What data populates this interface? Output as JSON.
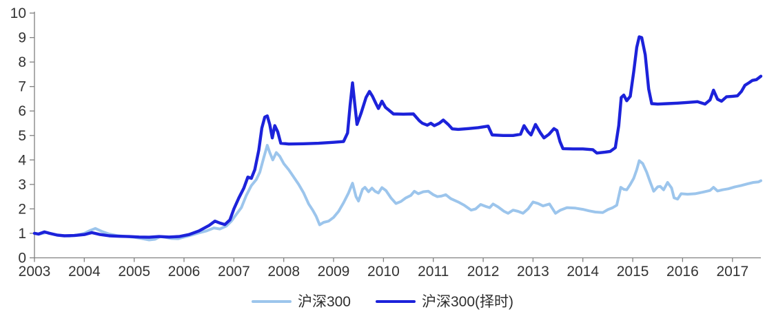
{
  "chart_data": {
    "type": "line",
    "xlim": [
      2003,
      2017.57
    ],
    "ylim": [
      0,
      10
    ],
    "x_ticks": [
      2003,
      2004,
      2005,
      2006,
      2007,
      2008,
      2009,
      2010,
      2011,
      2012,
      2013,
      2014,
      2015,
      2016,
      2017
    ],
    "y_ticks": [
      0,
      1,
      2,
      3,
      4,
      5,
      6,
      7,
      8,
      9,
      10
    ],
    "grid": false,
    "legend_position": "bottom",
    "axis_color": "#808080",
    "text_color": "#333333",
    "background": "#FFFFFF",
    "series": [
      {
        "name": "沪深300",
        "color": "#9CC5EC",
        "width": 4,
        "x": [
          2003.0,
          2003.1,
          2003.25,
          2003.4,
          2003.55,
          2003.7,
          2003.85,
          2004.0,
          2004.12,
          2004.22,
          2004.35,
          2004.5,
          2004.65,
          2004.8,
          2005.0,
          2005.15,
          2005.3,
          2005.42,
          2005.52,
          2005.62,
          2005.75,
          2005.88,
          2006.0,
          2006.15,
          2006.3,
          2006.45,
          2006.6,
          2006.72,
          2006.85,
          2006.95,
          2007.05,
          2007.15,
          2007.25,
          2007.35,
          2007.45,
          2007.52,
          2007.6,
          2007.67,
          2007.72,
          2007.78,
          2007.85,
          2007.92,
          2008.0,
          2008.1,
          2008.2,
          2008.3,
          2008.4,
          2008.5,
          2008.58,
          2008.65,
          2008.72,
          2008.8,
          2008.9,
          2009.0,
          2009.1,
          2009.2,
          2009.3,
          2009.38,
          2009.45,
          2009.5,
          2009.58,
          2009.63,
          2009.7,
          2009.77,
          2009.83,
          2009.9,
          2009.97,
          2010.05,
          2010.15,
          2010.25,
          2010.35,
          2010.45,
          2010.55,
          2010.62,
          2010.7,
          2010.8,
          2010.9,
          2011.0,
          2011.08,
          2011.16,
          2011.25,
          2011.35,
          2011.5,
          2011.62,
          2011.76,
          2011.85,
          2011.95,
          2012.05,
          2012.13,
          2012.2,
          2012.3,
          2012.42,
          2012.5,
          2012.6,
          2012.7,
          2012.8,
          2012.9,
          2013.0,
          2013.1,
          2013.2,
          2013.33,
          2013.45,
          2013.55,
          2013.68,
          2013.85,
          2014.0,
          2014.12,
          2014.25,
          2014.4,
          2014.5,
          2014.6,
          2014.68,
          2014.76,
          2014.82,
          2014.88,
          2014.95,
          2015.02,
          2015.08,
          2015.13,
          2015.2,
          2015.28,
          2015.35,
          2015.42,
          2015.5,
          2015.55,
          2015.62,
          2015.7,
          2015.78,
          2015.83,
          2015.9,
          2015.97,
          2016.1,
          2016.25,
          2016.4,
          2016.55,
          2016.62,
          2016.7,
          2016.8,
          2016.92,
          2017.05,
          2017.17,
          2017.3,
          2017.42,
          2017.52,
          2017.57
        ],
        "y": [
          1.0,
          0.97,
          1.04,
          0.95,
          0.91,
          0.89,
          0.93,
          1.0,
          1.12,
          1.2,
          1.08,
          0.97,
          0.91,
          0.88,
          0.84,
          0.79,
          0.73,
          0.76,
          0.87,
          0.84,
          0.79,
          0.78,
          0.85,
          0.93,
          1.02,
          1.1,
          1.22,
          1.18,
          1.3,
          1.5,
          1.78,
          2.05,
          2.55,
          2.95,
          3.2,
          3.5,
          4.1,
          4.6,
          4.3,
          4.0,
          4.3,
          4.15,
          3.85,
          3.6,
          3.3,
          3.0,
          2.65,
          2.2,
          1.95,
          1.7,
          1.35,
          1.45,
          1.5,
          1.65,
          1.9,
          2.25,
          2.65,
          3.05,
          2.5,
          2.32,
          2.8,
          2.88,
          2.7,
          2.85,
          2.72,
          2.65,
          2.87,
          2.75,
          2.45,
          2.22,
          2.3,
          2.45,
          2.55,
          2.72,
          2.62,
          2.7,
          2.72,
          2.58,
          2.5,
          2.52,
          2.58,
          2.42,
          2.28,
          2.15,
          1.95,
          2.0,
          2.18,
          2.1,
          2.05,
          2.2,
          2.08,
          1.9,
          1.82,
          1.95,
          1.9,
          1.82,
          2.0,
          2.28,
          2.22,
          2.12,
          2.2,
          1.82,
          1.95,
          2.05,
          2.03,
          1.98,
          1.92,
          1.87,
          1.85,
          1.97,
          2.05,
          2.15,
          2.88,
          2.8,
          2.78,
          3.0,
          3.25,
          3.6,
          3.97,
          3.85,
          3.5,
          3.1,
          2.72,
          2.9,
          2.92,
          2.78,
          3.08,
          2.85,
          2.45,
          2.4,
          2.62,
          2.6,
          2.62,
          2.68,
          2.75,
          2.88,
          2.73,
          2.78,
          2.82,
          2.9,
          2.95,
          3.02,
          3.08,
          3.1,
          3.15
        ]
      },
      {
        "name": "沪深300(择时)",
        "color": "#1C22DA",
        "width": 4.4,
        "x": [
          2003.0,
          2003.08,
          2003.2,
          2003.3,
          2003.45,
          2003.6,
          2003.8,
          2004.0,
          2004.15,
          2004.3,
          2004.5,
          2004.7,
          2004.9,
          2005.1,
          2005.3,
          2005.5,
          2005.7,
          2005.9,
          2006.1,
          2006.3,
          2006.5,
          2006.62,
          2006.72,
          2006.82,
          2006.92,
          2007.0,
          2007.1,
          2007.2,
          2007.28,
          2007.35,
          2007.42,
          2007.5,
          2007.56,
          2007.62,
          2007.67,
          2007.72,
          2007.77,
          2007.82,
          2007.88,
          2007.94,
          2008.1,
          2008.4,
          2008.7,
          2009.0,
          2009.2,
          2009.28,
          2009.33,
          2009.38,
          2009.43,
          2009.47,
          2009.55,
          2009.65,
          2009.72,
          2009.78,
          2009.85,
          2009.9,
          2009.97,
          2010.04,
          2010.1,
          2010.2,
          2010.4,
          2010.6,
          2010.72,
          2010.78,
          2010.88,
          2010.95,
          2011.02,
          2011.12,
          2011.2,
          2011.3,
          2011.38,
          2011.5,
          2011.7,
          2011.9,
          2012.1,
          2012.18,
          2012.4,
          2012.6,
          2012.75,
          2012.82,
          2012.9,
          2012.96,
          2013.05,
          2013.15,
          2013.22,
          2013.32,
          2013.42,
          2013.48,
          2013.54,
          2013.6,
          2013.8,
          2014.0,
          2014.2,
          2014.28,
          2014.45,
          2014.55,
          2014.65,
          2014.72,
          2014.77,
          2014.82,
          2014.88,
          2014.95,
          2015.02,
          2015.08,
          2015.13,
          2015.18,
          2015.25,
          2015.32,
          2015.38,
          2015.5,
          2015.7,
          2015.9,
          2016.1,
          2016.3,
          2016.45,
          2016.55,
          2016.62,
          2016.7,
          2016.78,
          2016.88,
          2017.0,
          2017.1,
          2017.18,
          2017.25,
          2017.33,
          2017.4,
          2017.48,
          2017.57
        ],
        "y": [
          1.0,
          0.97,
          1.06,
          1.0,
          0.93,
          0.9,
          0.91,
          0.95,
          1.03,
          0.96,
          0.9,
          0.88,
          0.87,
          0.85,
          0.84,
          0.87,
          0.85,
          0.87,
          0.95,
          1.1,
          1.32,
          1.5,
          1.42,
          1.36,
          1.55,
          2.0,
          2.45,
          2.85,
          3.3,
          3.25,
          3.6,
          4.4,
          5.3,
          5.75,
          5.8,
          5.45,
          4.9,
          5.4,
          5.15,
          4.68,
          4.65,
          4.66,
          4.68,
          4.72,
          4.75,
          5.1,
          6.2,
          7.15,
          6.2,
          5.45,
          5.9,
          6.55,
          6.8,
          6.6,
          6.3,
          6.1,
          6.4,
          6.15,
          6.05,
          5.88,
          5.87,
          5.88,
          5.6,
          5.5,
          5.42,
          5.5,
          5.4,
          5.5,
          5.63,
          5.45,
          5.27,
          5.25,
          5.28,
          5.32,
          5.38,
          5.02,
          5.0,
          5.0,
          5.05,
          5.4,
          5.15,
          5.02,
          5.45,
          5.1,
          4.9,
          5.05,
          5.28,
          5.2,
          4.75,
          4.46,
          4.45,
          4.45,
          4.42,
          4.28,
          4.32,
          4.35,
          4.5,
          5.4,
          6.55,
          6.65,
          6.42,
          6.6,
          7.6,
          8.6,
          9.03,
          9.0,
          8.3,
          6.9,
          6.3,
          6.28,
          6.3,
          6.32,
          6.35,
          6.38,
          6.28,
          6.45,
          6.85,
          6.48,
          6.4,
          6.58,
          6.6,
          6.62,
          6.8,
          7.05,
          7.15,
          7.25,
          7.28,
          7.42
        ]
      }
    ]
  },
  "legend": {
    "items": [
      {
        "label": "沪深300"
      },
      {
        "label": "沪深300(择时)"
      }
    ]
  }
}
